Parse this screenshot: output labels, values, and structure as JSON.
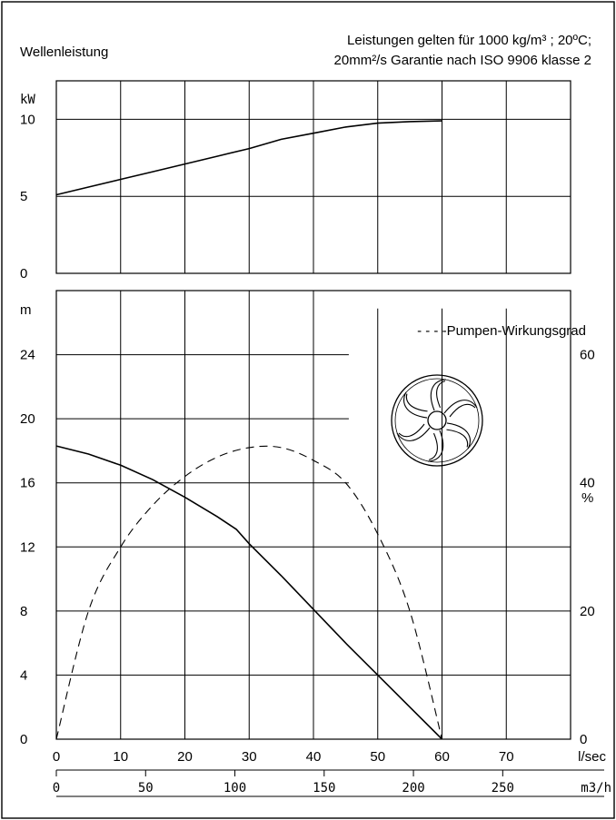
{
  "header": {
    "left_label": "Wellenleistung",
    "note_line1": "Leistungen gelten für 1000 kg/m³ ; 20ºC;",
    "note_line2": "20mm²/s Garantie nach ISO 9906 klasse 2"
  },
  "chart_data": [
    {
      "type": "line",
      "name": "power-curve-chart",
      "xlabel": "l/sec",
      "ylabel": "kW",
      "xlim": [
        0,
        80
      ],
      "ylim": [
        0,
        12.5
      ],
      "yticks": [
        0,
        5,
        10
      ],
      "x": [
        0,
        5,
        10,
        15,
        20,
        25,
        30,
        35,
        40,
        45,
        50,
        55,
        60
      ],
      "series": [
        {
          "values": [
            5.1,
            5.6,
            6.1,
            6.6,
            7.1,
            7.6,
            8.1,
            8.7,
            9.1,
            9.5,
            9.75,
            9.85,
            9.9
          ]
        }
      ]
    },
    {
      "type": "line",
      "name": "head-efficiency-chart",
      "xlabel": "l/sec",
      "ylabel": "m",
      "y2label": "%",
      "xlim": [
        0,
        80
      ],
      "xticks": [
        0,
        10,
        20,
        30,
        40,
        50,
        60,
        70
      ],
      "ylim": [
        0,
        28
      ],
      "yticks": [
        0,
        4,
        8,
        12,
        16,
        20,
        24
      ],
      "y2lim": [
        0,
        70
      ],
      "y2ticks": [
        0,
        20,
        40,
        60
      ],
      "legend": "- - - -Pumpen-Wirkungsgrad",
      "secondary_axis": {
        "label": "m3/h",
        "ticks": [
          0,
          50,
          100,
          150,
          200,
          250
        ]
      },
      "series": [
        {
          "axis": "left",
          "style": "solid",
          "x": [
            0,
            5,
            10,
            15,
            20,
            25,
            28,
            30,
            35,
            40,
            45,
            50,
            55,
            60
          ],
          "values": [
            18.3,
            17.8,
            17.1,
            16.2,
            15.1,
            13.9,
            13.1,
            12.2,
            10.2,
            8.1,
            6.0,
            4.0,
            2.0,
            0
          ]
        },
        {
          "axis": "right",
          "style": "dashed",
          "x": [
            0,
            5,
            10,
            15,
            20,
            25,
            30,
            35,
            40,
            45,
            50,
            55,
            60
          ],
          "values": [
            0,
            20,
            30,
            36.5,
            41,
            44,
            45.5,
            45.5,
            43.5,
            40,
            32,
            20,
            0
          ]
        }
      ]
    }
  ]
}
